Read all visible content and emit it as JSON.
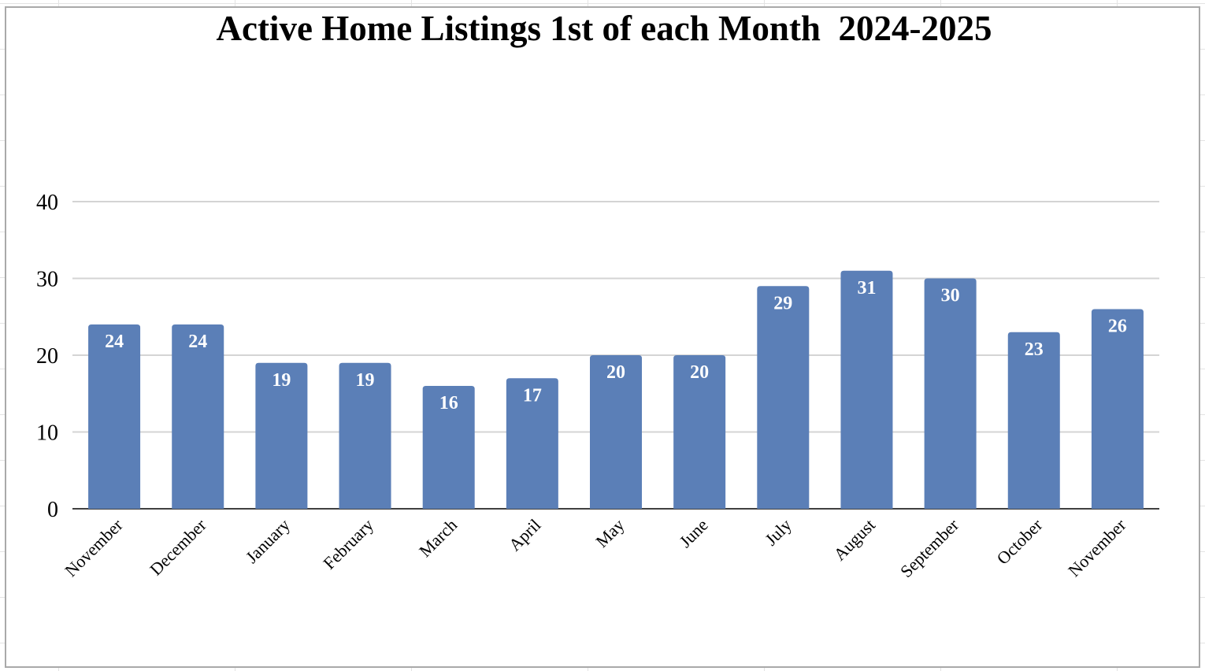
{
  "chart_data": {
    "type": "bar",
    "title": "Active Home Listings 1st of each Month  2024-2025",
    "xlabel": "",
    "ylabel": "",
    "categories": [
      "November",
      "December",
      "January",
      "February",
      "March",
      "April",
      "May",
      "June",
      "July",
      "August",
      "September",
      "October",
      "November"
    ],
    "values": [
      24,
      24,
      19,
      19,
      16,
      17,
      20,
      20,
      29,
      31,
      30,
      23,
      26
    ],
    "ylim": [
      0,
      40
    ],
    "yticks": [
      "0",
      "10",
      "20",
      "30",
      "40"
    ],
    "grid": true,
    "legend": "none",
    "colors": {
      "bar": "#5b7fb7",
      "grid": "#d4d4d4",
      "axis": "#404040",
      "data_label": "#ffffff"
    }
  }
}
